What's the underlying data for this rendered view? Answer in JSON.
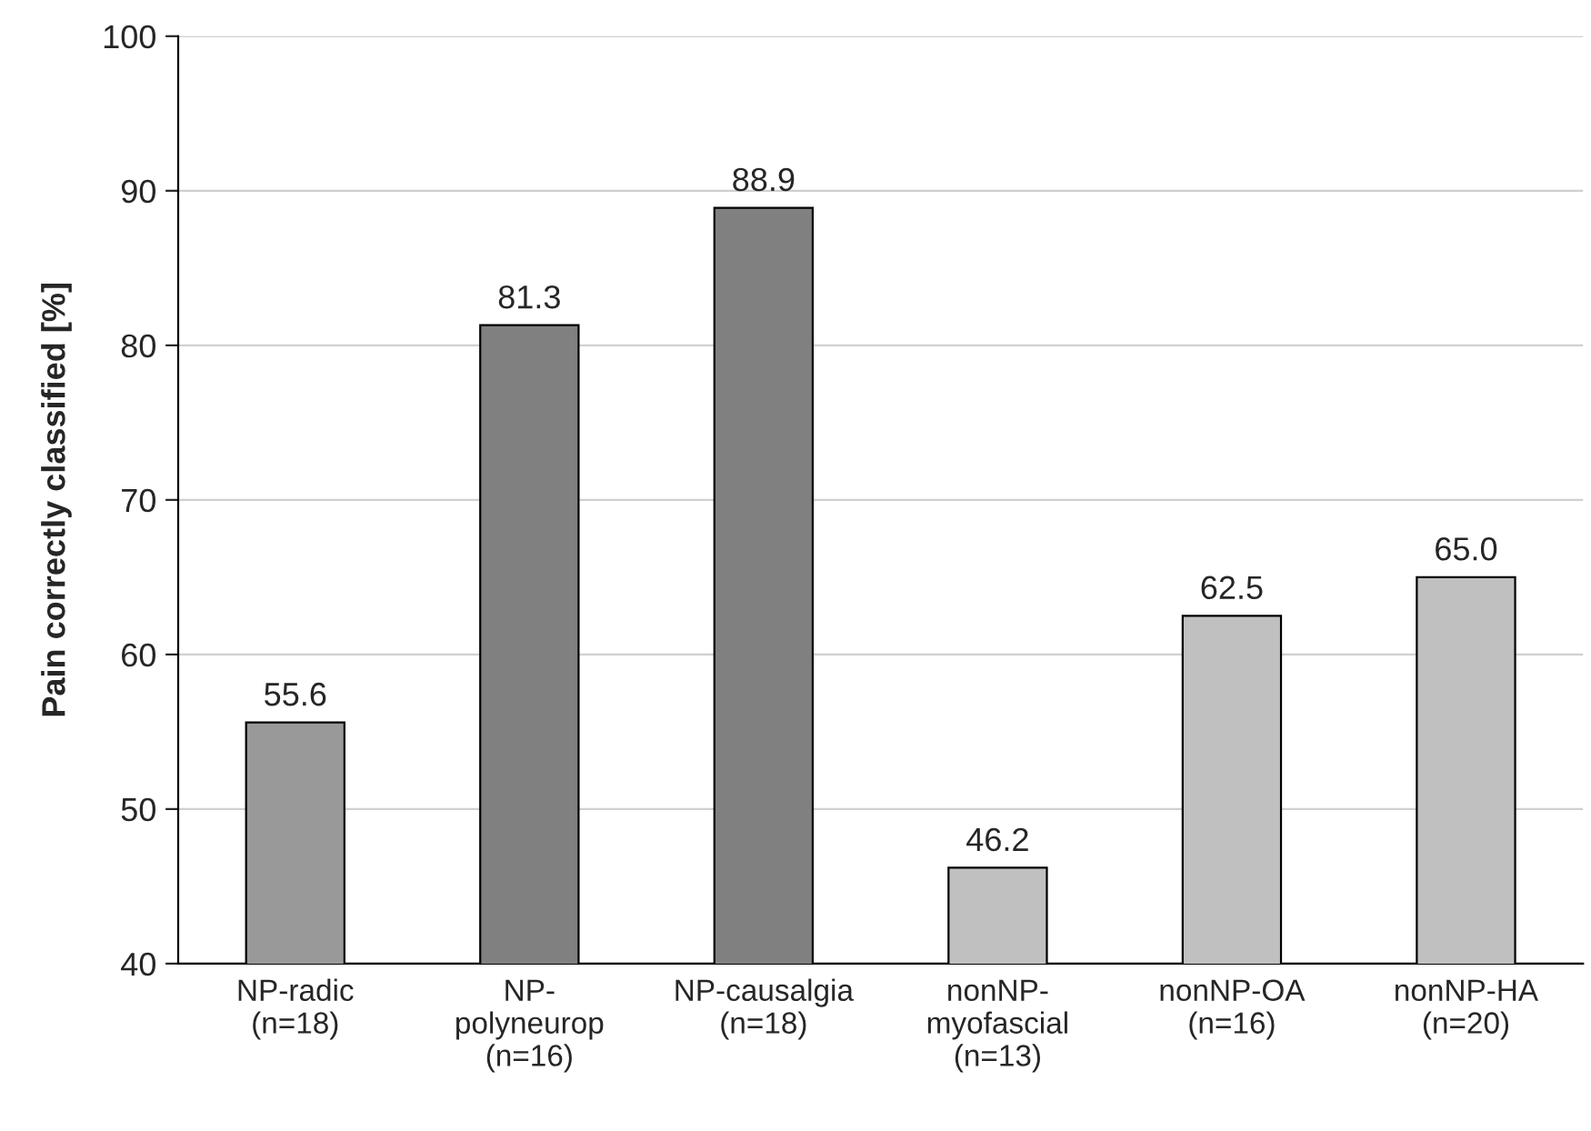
{
  "chart_data": {
    "type": "bar",
    "ylabel": "Pain correctly classified [%]",
    "categories": [
      "NP-radic\n(n=18)",
      "NP-\npolyneurop\n(n=16)",
      "NP-causalgia\n(n=18)",
      "nonNP-\nmyofascial\n(n=13)",
      "nonNP-OA\n(n=16)",
      "nonNP-HA\n(n=20)"
    ],
    "values": [
      55.6,
      81.3,
      88.9,
      46.2,
      62.5,
      65.0
    ],
    "colors": [
      "#999999",
      "#808080",
      "#808080",
      "#c0c0c0",
      "#c0c0c0",
      "#c0c0c0"
    ],
    "value_labels": [
      "55.6",
      "81.3",
      "88.9",
      "46.2",
      "62.5",
      "65.0"
    ],
    "ylim": [
      40,
      100
    ],
    "yticks": [
      40,
      50,
      60,
      70,
      80,
      90,
      100
    ],
    "grid": "y"
  }
}
